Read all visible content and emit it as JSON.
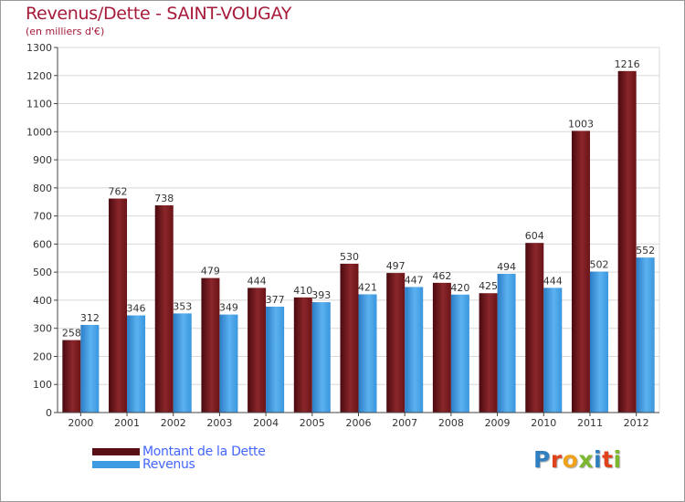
{
  "chart_data": {
    "type": "bar",
    "title": "Revenus/Dette - SAINT-VOUGAY",
    "subtitle": "(en milliers d'€)",
    "categories": [
      "2000",
      "2001",
      "2002",
      "2003",
      "2004",
      "2005",
      "2006",
      "2007",
      "2008",
      "2009",
      "2010",
      "2011",
      "2012"
    ],
    "series": [
      {
        "name": "Montant de la Dette",
        "color": "#7b1a1f",
        "values": [
          258,
          762,
          738,
          479,
          444,
          410,
          530,
          497,
          462,
          425,
          604,
          1003,
          1216
        ]
      },
      {
        "name": "Revenus",
        "color": "#3d9be2",
        "values": [
          312,
          346,
          353,
          349,
          377,
          393,
          421,
          447,
          420,
          494,
          444,
          502,
          552
        ]
      }
    ],
    "ylim": [
      0,
      1300
    ],
    "yticks": [
      0,
      100,
      200,
      300,
      400,
      500,
      600,
      700,
      800,
      900,
      1000,
      1100,
      1200,
      1300
    ],
    "grid": true,
    "legend_position": "bottom-left"
  },
  "logo": {
    "letters": [
      {
        "ch": "P",
        "color": "#2f7fc1"
      },
      {
        "ch": "r",
        "color": "#e0431c"
      },
      {
        "ch": "o",
        "color": "#f0a21a"
      },
      {
        "ch": "x",
        "color": "#7cb82f"
      },
      {
        "ch": "i",
        "color": "#2f7fc1"
      },
      {
        "ch": "t",
        "color": "#e0431c"
      },
      {
        "ch": "i",
        "color": "#7cb82f"
      }
    ]
  }
}
